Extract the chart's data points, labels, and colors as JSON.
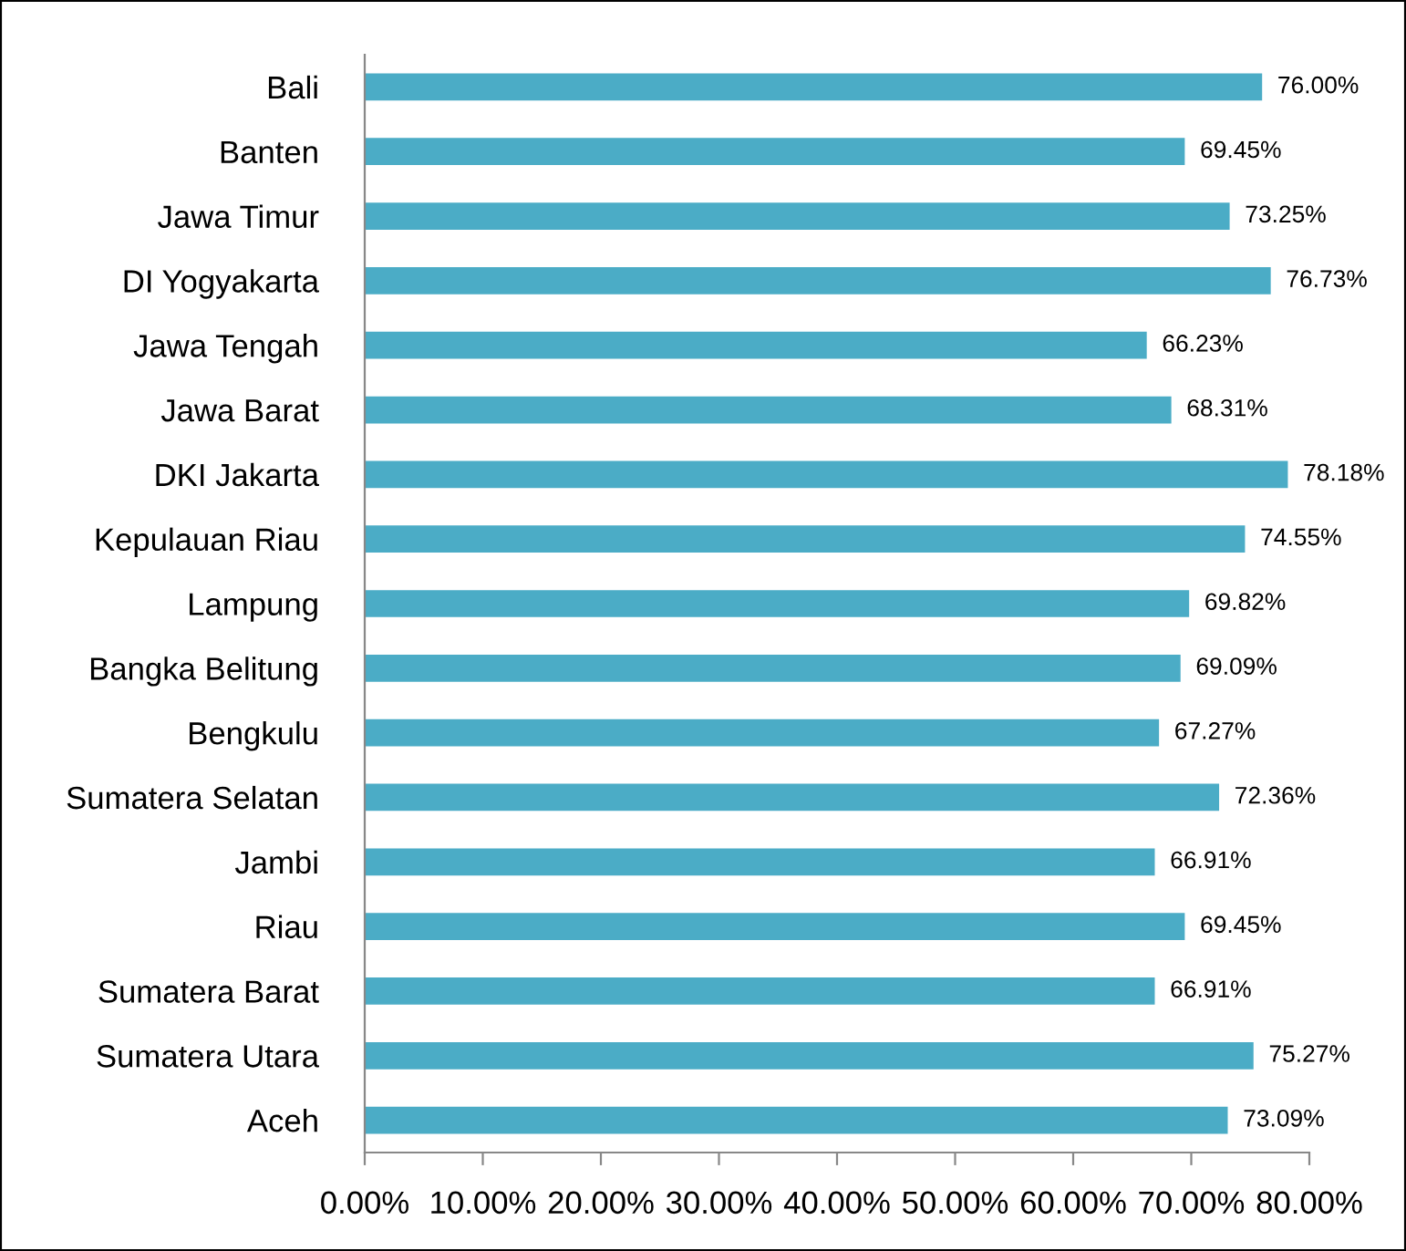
{
  "chart_data": {
    "type": "bar",
    "orientation": "horizontal",
    "categories": [
      "Bali",
      "Banten",
      "Jawa Timur",
      "DI Yogyakarta",
      "Jawa Tengah",
      "Jawa Barat",
      "DKI Jakarta",
      "Kepulauan Riau",
      "Lampung",
      "Bangka Belitung",
      "Bengkulu",
      "Sumatera Selatan",
      "Jambi",
      "Riau",
      "Sumatera Barat",
      "Sumatera Utara",
      "Aceh"
    ],
    "values": [
      76.0,
      69.45,
      73.25,
      76.73,
      66.23,
      68.31,
      78.18,
      74.55,
      69.82,
      69.09,
      67.27,
      72.36,
      66.91,
      69.45,
      66.91,
      75.27,
      73.09
    ],
    "value_labels": [
      "76.00%",
      "69.45%",
      "73.25%",
      "76.73%",
      "66.23%",
      "68.31%",
      "78.18%",
      "74.55%",
      "69.82%",
      "69.09%",
      "67.27%",
      "72.36%",
      "66.91%",
      "69.45%",
      "66.91%",
      "75.27%",
      "73.09%"
    ],
    "color": "#4bacc6",
    "xlim": [
      0,
      80
    ],
    "xticks": [
      {
        "value": 0,
        "label": "0.00%"
      },
      {
        "value": 10,
        "label": "10.00%"
      },
      {
        "value": 20,
        "label": "20.00%"
      },
      {
        "value": 30,
        "label": "30.00%"
      },
      {
        "value": 40,
        "label": "40.00%"
      },
      {
        "value": 50,
        "label": "50.00%"
      },
      {
        "value": 60,
        "label": "60.00%"
      },
      {
        "value": 70,
        "label": "70.00%"
      },
      {
        "value": 80,
        "label": "80.00%"
      }
    ],
    "grid": false,
    "legend": false
  }
}
